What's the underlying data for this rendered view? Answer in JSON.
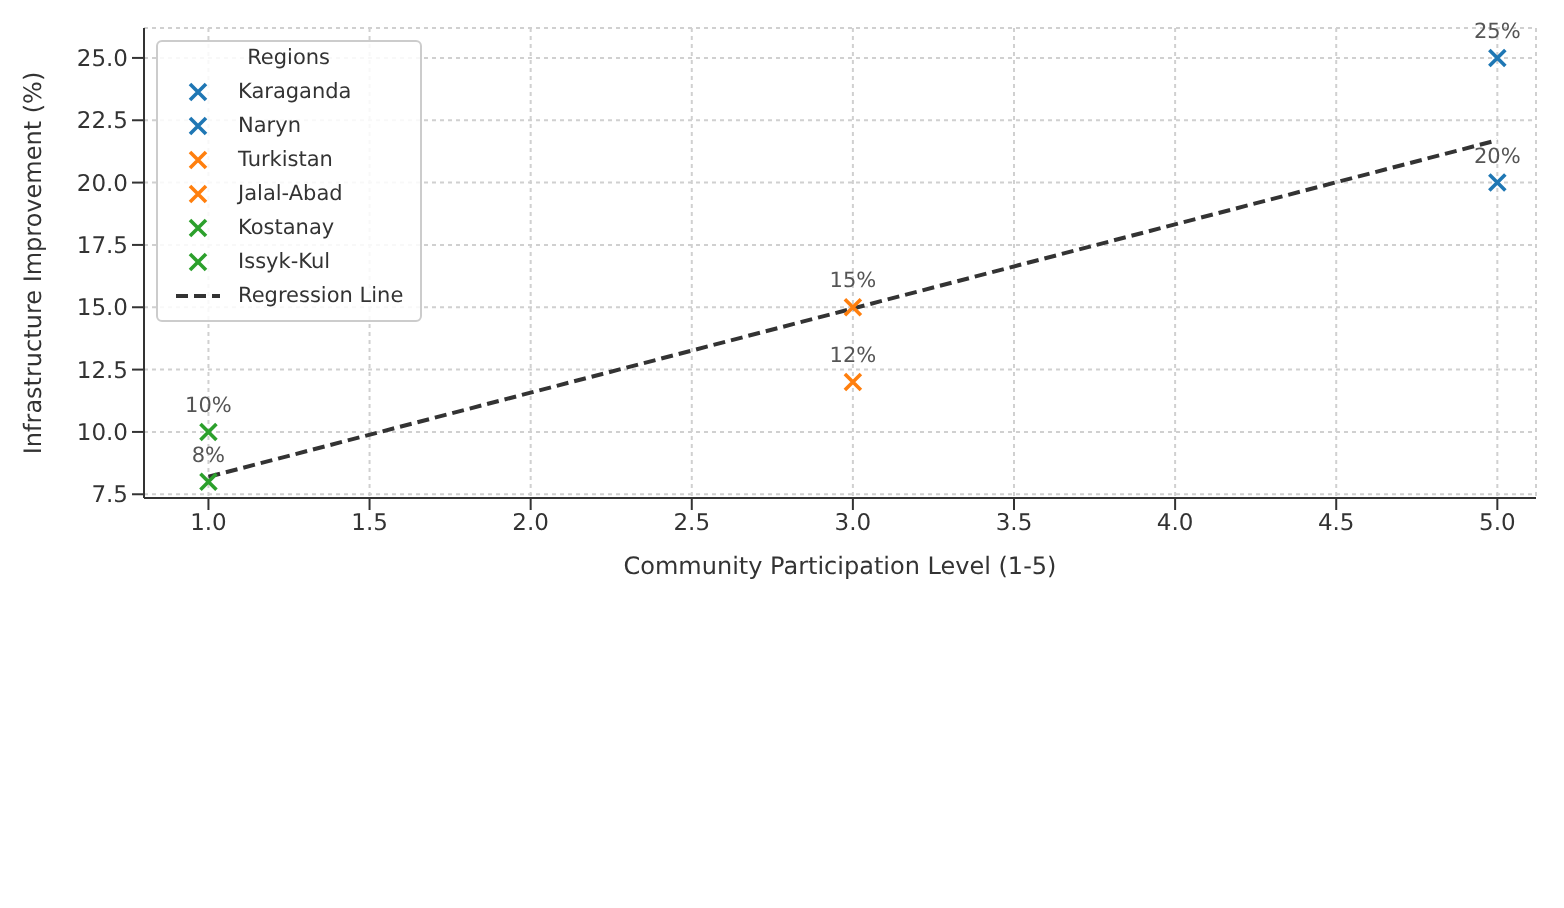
{
  "chart_data": {
    "type": "scatter",
    "xlabel": "Community Participation Level (1-5)",
    "ylabel": "Infrastructure Improvement (%)",
    "legend_title": "Regions",
    "xlim": [
      0.8,
      5.12
    ],
    "ylim": [
      7.35,
      26.2
    ],
    "xticks": [
      {
        "value": 1,
        "label": "1.0"
      },
      {
        "value": 1.5,
        "label": "1.5"
      },
      {
        "value": 2,
        "label": "2.0"
      },
      {
        "value": 2.5,
        "label": "2.5"
      },
      {
        "value": 3,
        "label": "3.0"
      },
      {
        "value": 3.5,
        "label": "3.5"
      },
      {
        "value": 4,
        "label": "4.0"
      },
      {
        "value": 4.5,
        "label": "4.5"
      },
      {
        "value": 5,
        "label": "5.0"
      }
    ],
    "yticks": [
      {
        "value": 7.5,
        "label": "7.5"
      },
      {
        "value": 10,
        "label": "10.0"
      },
      {
        "value": 12.5,
        "label": "12.5"
      },
      {
        "value": 15,
        "label": "15.0"
      },
      {
        "value": 17.5,
        "label": "17.5"
      },
      {
        "value": 20,
        "label": "20.0"
      },
      {
        "value": 22.5,
        "label": "22.5"
      },
      {
        "value": 25,
        "label": "25.0"
      }
    ],
    "grid": true,
    "legend": "top left",
    "marker": "cross",
    "series": [
      {
        "name": "Karaganda",
        "color": "#1f77b4",
        "x": [
          5
        ],
        "values": [
          25
        ],
        "value_labels": [
          "25%"
        ]
      },
      {
        "name": "Naryn",
        "color": "#1f77b4",
        "x": [
          5
        ],
        "values": [
          20
        ],
        "value_labels": [
          "20%"
        ]
      },
      {
        "name": "Turkistan",
        "color": "#ff7f0e",
        "x": [
          3
        ],
        "values": [
          15
        ],
        "value_labels": [
          "15%"
        ]
      },
      {
        "name": "Jalal-Abad",
        "color": "#ff7f0e",
        "x": [
          3
        ],
        "values": [
          12
        ],
        "value_labels": [
          "12%"
        ]
      },
      {
        "name": "Kostanay",
        "color": "#2ca02c",
        "x": [
          1
        ],
        "values": [
          10
        ],
        "value_labels": [
          "10%"
        ]
      },
      {
        "name": "Issyk-Kul",
        "color": "#2ca02c",
        "x": [
          1
        ],
        "values": [
          8
        ],
        "value_labels": [
          "8%"
        ]
      },
      {
        "name": "Regression Line",
        "type": "line",
        "color": "#333333",
        "line_style": "dashed",
        "marker": "none",
        "x": [
          1,
          5
        ],
        "values": [
          8.2,
          21.7
        ]
      }
    ]
  }
}
